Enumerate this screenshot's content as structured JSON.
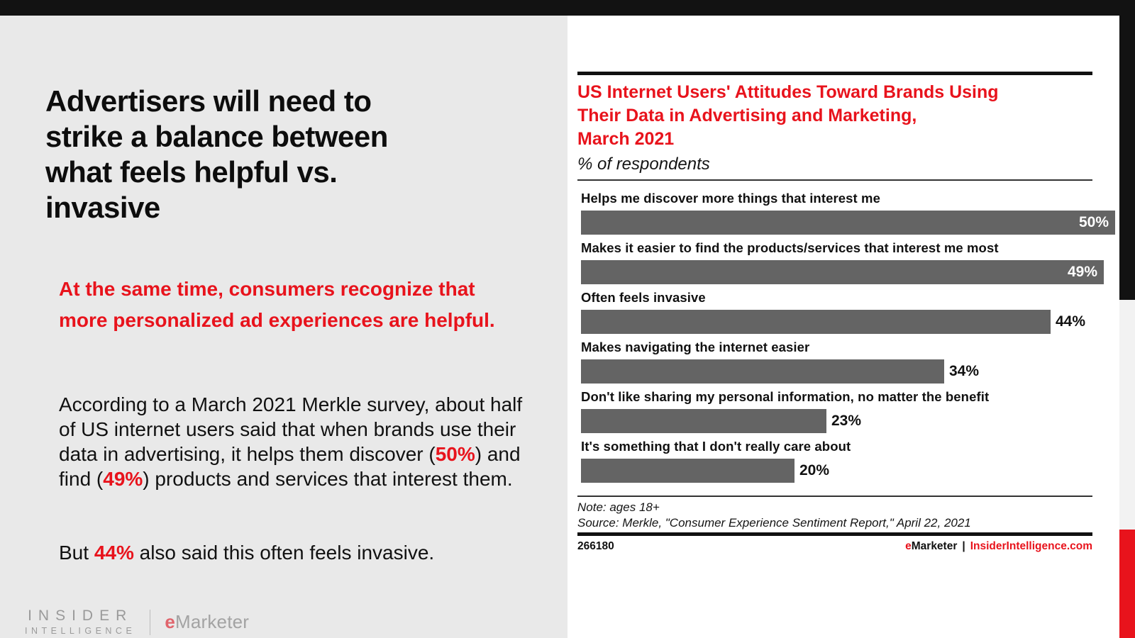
{
  "slide": {
    "headline_lines": [
      "Advertisers will need to",
      "strike a balance between",
      "what feels helpful vs.",
      "invasive"
    ],
    "highlight_paragraph": "At the same time, consumers recognize that more personalized ad experiences are helpful.",
    "body_paragraph_parts": [
      {
        "text": "According to a March 2021 Merkle survey, about half of US internet users said that when brands use their data in advertising, it helps them discover (",
        "em": false
      },
      {
        "text": "50%",
        "em": true
      },
      {
        "text": ") and find (",
        "em": false
      },
      {
        "text": "49%",
        "em": true
      },
      {
        "text": ") products and services that interest them.",
        "em": false
      }
    ],
    "closing_paragraph_parts": [
      {
        "text": "But ",
        "em": false
      },
      {
        "text": "44%",
        "em": true
      },
      {
        "text": " also said this often feels invasive.",
        "em": false
      }
    ]
  },
  "branding": {
    "insider_line1": "INSIDER",
    "insider_line2": "INTELLIGENCE",
    "emarketer_e": "e",
    "emarketer_rest": "Marketer"
  },
  "chart": {
    "title_lines": [
      "US Internet Users' Attitudes Toward Brands Using",
      "Their Data in Advertising and Marketing,",
      "March 2021"
    ],
    "subtitle": "% of respondents",
    "note": "Note: ages 18+",
    "source": "Source: Merkle, \"Consumer Experience Sentiment Report,\" April 22, 2021",
    "chart_id": "266180",
    "footer_brand_e": "e",
    "footer_brand_rest": "Marketer",
    "footer_separator": "|",
    "footer_site": "InsiderIntelligence.com"
  },
  "chart_data": {
    "type": "bar",
    "orientation": "horizontal",
    "title": "US Internet Users' Attitudes Toward Brands Using Their Data in Advertising and Marketing, March 2021",
    "subtitle": "% of respondents",
    "categories": [
      "Helps me discover more things that interest me",
      "Makes it easier to find the products/services that interest me most",
      "Often feels invasive",
      "Makes navigating the internet easier",
      "Don't like sharing my personal information, no matter the benefit",
      "It's something that I don't really care about"
    ],
    "values": [
      50,
      49,
      44,
      34,
      23,
      20
    ],
    "value_labels": [
      "50%",
      "49%",
      "44%",
      "34%",
      "23%",
      "20%"
    ],
    "unit": "%",
    "xlim": [
      0,
      50
    ],
    "grid": false,
    "legend": "none",
    "bar_color": "#646464",
    "note": "Note: ages 18+",
    "source": "Source: Merkle, \"Consumer Experience Sentiment Report,\" April 22, 2021"
  },
  "colors": {
    "accent_red": "#e8131c",
    "bar_gray": "#646464",
    "slide_background": "#e9e9e9",
    "top_bar_black": "#121212",
    "strip_light_gray": "#f2f2f2"
  }
}
